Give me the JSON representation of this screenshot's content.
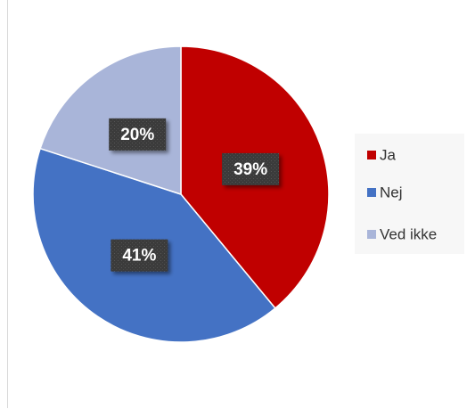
{
  "chart_data": {
    "type": "pie",
    "categories": [
      "Ja",
      "Nej",
      "Ved ikke"
    ],
    "values": [
      39,
      41,
      20
    ],
    "value_labels": [
      "39%",
      "41%",
      "20%"
    ],
    "colors": [
      "#c00000",
      "#4472c4",
      "#a9b5d9"
    ],
    "legend": "right"
  }
}
